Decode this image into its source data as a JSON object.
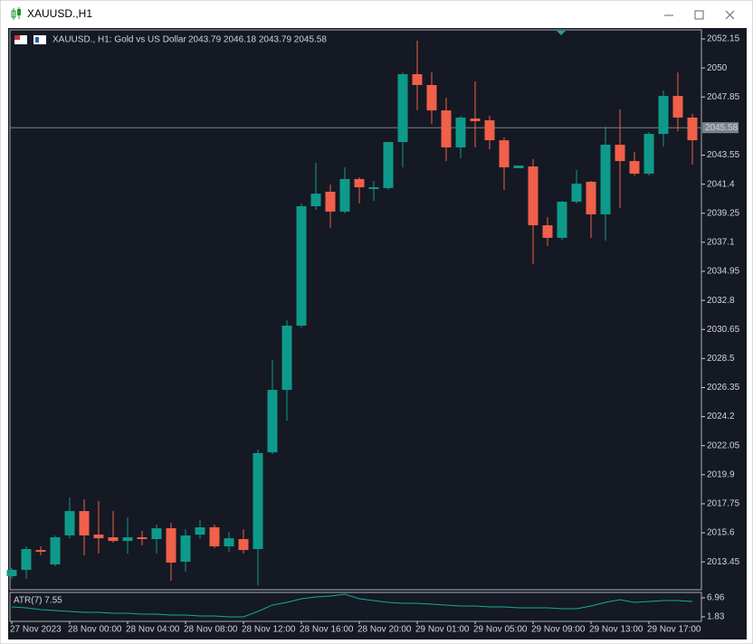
{
  "window": {
    "title": "XAUUSD.,H1"
  },
  "chart_data": [
    {
      "type": "candlestick",
      "symbol_label": "XAUUSD., H1:  Gold vs US Dollar",
      "ohlc_label": "2043.79 2046.18 2043.79 2045.58",
      "categories": [
        "27 Nov 2023",
        null,
        null,
        null,
        "28 Nov 00:00",
        null,
        null,
        null,
        "28 Nov 04:00",
        null,
        null,
        null,
        "28 Nov 08:00",
        null,
        null,
        null,
        "28 Nov 12:00",
        null,
        null,
        null,
        "28 Nov 16:00",
        null,
        null,
        null,
        "28 Nov 20:00",
        null,
        null,
        null,
        "29 Nov 01:00",
        null,
        null,
        null,
        "29 Nov 05:00",
        null,
        null,
        null,
        "29 Nov 09:00",
        null,
        null,
        null,
        "29 Nov 13:00",
        null,
        null,
        null,
        "29 Nov 17:00",
        null,
        null,
        null
      ],
      "open": [
        2012.39,
        2012.86,
        2014.33,
        2013.26,
        2015.41,
        2017.21,
        2015.47,
        2015.27,
        2015.0,
        2015.27,
        2015.14,
        2015.94,
        2013.46,
        2015.47,
        2016.01,
        2014.6,
        2015.14,
        2014.4,
        2021.56,
        2026.18,
        2030.93,
        2039.77,
        2040.84,
        2039.37,
        2041.78,
        2041.04,
        2041.11,
        2044.52,
        2049.54,
        2048.74,
        2046.86,
        2044.12,
        2046.26,
        2046.13,
        2044.65,
        2042.58,
        2042.71,
        2038.36,
        2037.43,
        2040.1,
        2041.58,
        2039.17,
        2044.32,
        2043.11,
        2042.18,
        2045.12,
        2047.93,
        2046.33
      ],
      "high": [
        2013.0,
        2014.6,
        2014.6,
        2015.41,
        2018.22,
        2018.08,
        2017.95,
        2017.21,
        2016.74,
        2015.74,
        2016.21,
        2016.34,
        2015.87,
        2016.54,
        2016.21,
        2015.67,
        2015.87,
        2021.76,
        2028.39,
        2031.33,
        2039.97,
        2042.98,
        2041.37,
        2042.65,
        2041.91,
        2041.64,
        2044.52,
        2049.67,
        2052.02,
        2049.67,
        2047.8,
        2046.46,
        2049.0,
        2046.46,
        2044.85,
        2042.78,
        2043.25,
        2038.96,
        2040.17,
        2042.45,
        2041.64,
        2045.66,
        2046.93,
        2043.78,
        2045.26,
        2048.33,
        2049.67,
        2046.59
      ],
      "low": [
        2012.19,
        2012.19,
        2013.93,
        2013.13,
        2015.2,
        2013.93,
        2014.07,
        2014.87,
        2014.07,
        2014.67,
        2014.07,
        2012.06,
        2012.73,
        2015.14,
        2014.47,
        2014.2,
        2014.07,
        2011.72,
        2021.43,
        2023.91,
        2030.8,
        2039.5,
        2038.16,
        2039.23,
        2039.97,
        2040.17,
        2040.97,
        2042.65,
        2046.86,
        2045.86,
        2043.11,
        2043.32,
        2044.12,
        2043.98,
        2040.97,
        2042.58,
        2035.48,
        2036.82,
        2037.29,
        2039.97,
        2037.43,
        2037.22,
        2039.63,
        2042.04,
        2042.04,
        2044.19,
        2045.32,
        2042.85
      ],
      "close": [
        2012.86,
        2014.4,
        2014.2,
        2015.27,
        2017.21,
        2015.41,
        2015.2,
        2015.0,
        2015.27,
        2015.14,
        2015.94,
        2013.4,
        2015.41,
        2016.01,
        2014.6,
        2015.2,
        2014.33,
        2021.5,
        2026.18,
        2030.93,
        2039.77,
        2040.7,
        2039.37,
        2041.78,
        2041.17,
        2041.17,
        2044.52,
        2049.54,
        2048.74,
        2046.86,
        2044.12,
        2046.33,
        2046.06,
        2044.65,
        2042.65,
        2042.78,
        2038.36,
        2037.43,
        2040.1,
        2041.44,
        2039.17,
        2044.32,
        2043.11,
        2042.18,
        2045.12,
        2047.93,
        2046.33,
        2044.65
      ],
      "up_color": "#0e9a8b",
      "down_color": "#f0604a",
      "ylim": [
        2011.39,
        2052.82
      ],
      "yticks": [
        2013.45,
        2015.6,
        2017.75,
        2019.9,
        2022.05,
        2024.2,
        2026.35,
        2028.5,
        2030.65,
        2032.8,
        2034.95,
        2037.1,
        2039.25,
        2041.4,
        2043.55,
        2047.85,
        2050.0,
        2052.15
      ],
      "current_price": 2045.58
    },
    {
      "type": "line",
      "title": "ATR(7) 7.55",
      "color": "#17a89a",
      "values": [
        4.52,
        4.28,
        3.79,
        3.54,
        3.3,
        3.06,
        3.06,
        2.81,
        2.81,
        2.57,
        2.57,
        2.32,
        2.32,
        2.08,
        2.08,
        1.84,
        1.84,
        3.3,
        5.01,
        5.74,
        6.72,
        7.2,
        7.45,
        7.94,
        6.72,
        6.23,
        5.74,
        5.5,
        5.5,
        5.25,
        5.01,
        4.76,
        4.76,
        4.52,
        4.52,
        4.28,
        4.28,
        4.28,
        4.03,
        4.03,
        4.76,
        5.74,
        6.47,
        5.74,
        5.99,
        6.23,
        6.23,
        5.99
      ],
      "ylim": [
        0.61,
        8.42
      ],
      "yticks": [
        1.83,
        6.96
      ]
    }
  ]
}
